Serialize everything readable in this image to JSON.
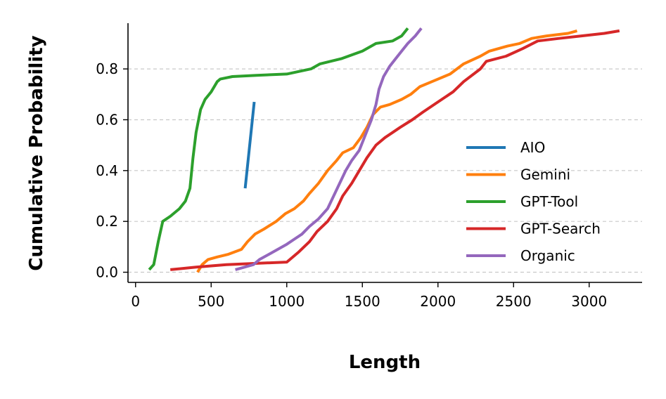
{
  "chart_data": {
    "type": "line",
    "title": "",
    "xlabel": "Length",
    "ylabel": "Cumulative Probability",
    "xlim": [
      -50,
      3350
    ],
    "ylim": [
      -0.04,
      0.98
    ],
    "xticks": [
      0,
      500,
      1000,
      1500,
      2000,
      2500,
      3000
    ],
    "yticks": [
      0.0,
      0.2,
      0.4,
      0.6,
      0.8
    ],
    "ytick_labels": [
      "0.0",
      "0.2",
      "0.4",
      "0.6",
      "0.8"
    ],
    "grid": "y-dashed",
    "legend": "center-right",
    "series": [
      {
        "name": "AIO",
        "color": "#1f77b4",
        "x": [
          725,
          785
        ],
        "y": [
          0.33,
          0.67
        ]
      },
      {
        "name": "Gemini",
        "color": "#ff7f0e",
        "x": [
          410,
          440,
          480,
          540,
          610,
          700,
          740,
          790,
          850,
          930,
          990,
          1050,
          1110,
          1150,
          1210,
          1270,
          1330,
          1370,
          1440,
          1490,
          1530,
          1570,
          1620,
          1680,
          1760,
          1820,
          1880,
          1960,
          2080,
          2170,
          2280,
          2340,
          2460,
          2540,
          2620,
          2720,
          2860,
          2920
        ],
        "y": [
          0.0,
          0.03,
          0.05,
          0.06,
          0.07,
          0.09,
          0.12,
          0.15,
          0.17,
          0.2,
          0.23,
          0.25,
          0.28,
          0.31,
          0.35,
          0.4,
          0.44,
          0.47,
          0.49,
          0.53,
          0.57,
          0.62,
          0.65,
          0.66,
          0.68,
          0.7,
          0.73,
          0.75,
          0.78,
          0.82,
          0.85,
          0.87,
          0.89,
          0.9,
          0.92,
          0.93,
          0.94,
          0.95
        ]
      },
      {
        "name": "GPT-Tool",
        "color": "#2ca02c",
        "x": [
          90,
          120,
          150,
          180,
          230,
          290,
          330,
          360,
          380,
          400,
          430,
          460,
          500,
          540,
          560,
          640,
          800,
          1000,
          1160,
          1220,
          1360,
          1500,
          1590,
          1700,
          1760,
          1800
        ],
        "y": [
          0.01,
          0.03,
          0.12,
          0.2,
          0.22,
          0.25,
          0.28,
          0.33,
          0.45,
          0.55,
          0.64,
          0.68,
          0.71,
          0.75,
          0.76,
          0.77,
          0.775,
          0.78,
          0.8,
          0.82,
          0.84,
          0.87,
          0.9,
          0.91,
          0.93,
          0.96
        ]
      },
      {
        "name": "GPT-Search",
        "color": "#d62728",
        "x": [
          230,
          400,
          600,
          800,
          1000,
          1080,
          1150,
          1200,
          1270,
          1330,
          1370,
          1430,
          1480,
          1530,
          1590,
          1650,
          1700,
          1750,
          1830,
          1900,
          2000,
          2100,
          2170,
          2280,
          2320,
          2450,
          2560,
          2660,
          2800,
          2950,
          3100,
          3200
        ],
        "y": [
          0.01,
          0.02,
          0.03,
          0.035,
          0.04,
          0.08,
          0.12,
          0.16,
          0.2,
          0.25,
          0.3,
          0.35,
          0.4,
          0.45,
          0.5,
          0.53,
          0.55,
          0.57,
          0.6,
          0.63,
          0.67,
          0.71,
          0.75,
          0.8,
          0.83,
          0.85,
          0.88,
          0.91,
          0.92,
          0.93,
          0.94,
          0.95
        ]
      },
      {
        "name": "Organic",
        "color": "#9467bd",
        "x": [
          660,
          720,
          780,
          820,
          880,
          940,
          1000,
          1050,
          1100,
          1150,
          1210,
          1270,
          1310,
          1350,
          1390,
          1430,
          1480,
          1520,
          1560,
          1590,
          1610,
          1640,
          1680,
          1720,
          1760,
          1800,
          1850,
          1890
        ],
        "y": [
          0.01,
          0.02,
          0.03,
          0.05,
          0.07,
          0.09,
          0.11,
          0.13,
          0.15,
          0.18,
          0.21,
          0.25,
          0.3,
          0.35,
          0.4,
          0.44,
          0.48,
          0.54,
          0.6,
          0.66,
          0.72,
          0.77,
          0.81,
          0.84,
          0.87,
          0.9,
          0.93,
          0.96
        ]
      }
    ]
  }
}
